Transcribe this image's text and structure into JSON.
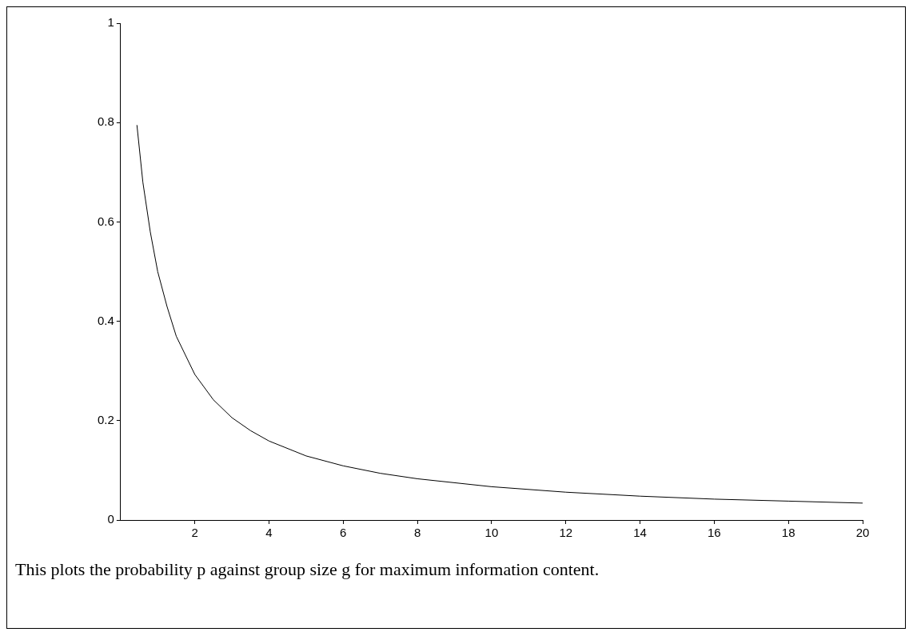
{
  "chart_data": {
    "type": "line",
    "x": [
      0.44,
      0.6,
      0.8,
      1,
      1.25,
      1.5,
      2,
      2.5,
      3,
      3.5,
      4,
      5,
      6,
      7,
      8,
      10,
      12,
      14,
      16,
      18,
      20
    ],
    "series": [
      {
        "color": "#000000",
        "values": [
          0.795,
          0.68,
          0.58,
          0.5,
          0.43,
          0.37,
          0.293,
          0.242,
          0.206,
          0.18,
          0.159,
          0.129,
          0.109,
          0.094,
          0.083,
          0.067,
          0.056,
          0.048,
          0.042,
          0.038,
          0.034
        ]
      }
    ],
    "xlim": [
      0,
      20
    ],
    "xticks": [
      2,
      4,
      6,
      8,
      10,
      12,
      14,
      16,
      18,
      20
    ],
    "ylim": [
      0,
      1
    ],
    "yticks": [
      0,
      0.2,
      0.4,
      0.6,
      0.8,
      1
    ],
    "grid": false,
    "legend": false,
    "marker": "none",
    "line_style": "solid",
    "annotations": [
      "This plots the probability p against group size g for maximum information content."
    ]
  }
}
